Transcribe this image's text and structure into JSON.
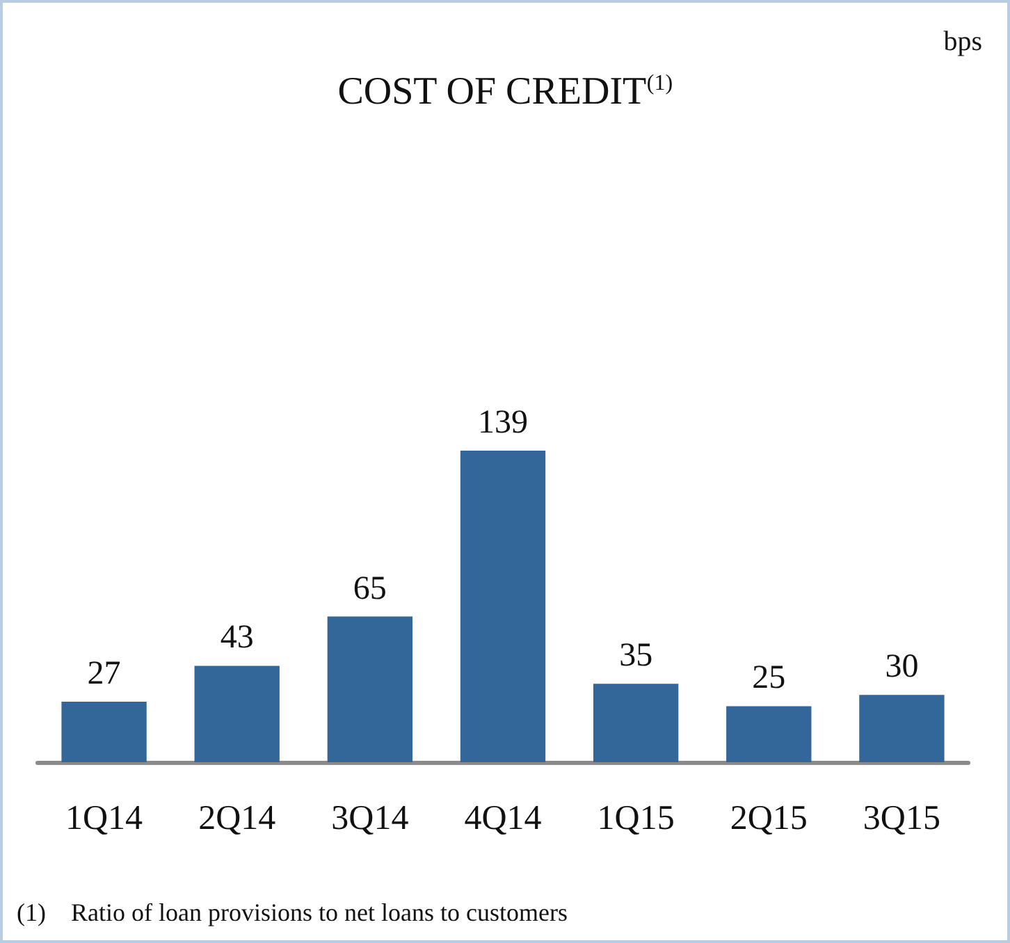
{
  "chart_data": {
    "type": "bar",
    "title": "COST OF CREDIT$^{(1)}$",
    "categories": [
      "1Q14",
      "2Q14",
      "3Q14",
      "4Q14",
      "1Q15",
      "2Q15",
      "3Q15"
    ],
    "series": [
      {
        "color": "#336699",
        "values": [
          27,
          43,
          65,
          139,
          35,
          25,
          30
        ]
      }
    ],
    "data_labels": true,
    "annotations": [
      "bps",
      "(1)    Ratio of loan provisions to net loans to customers"
    ]
  }
}
